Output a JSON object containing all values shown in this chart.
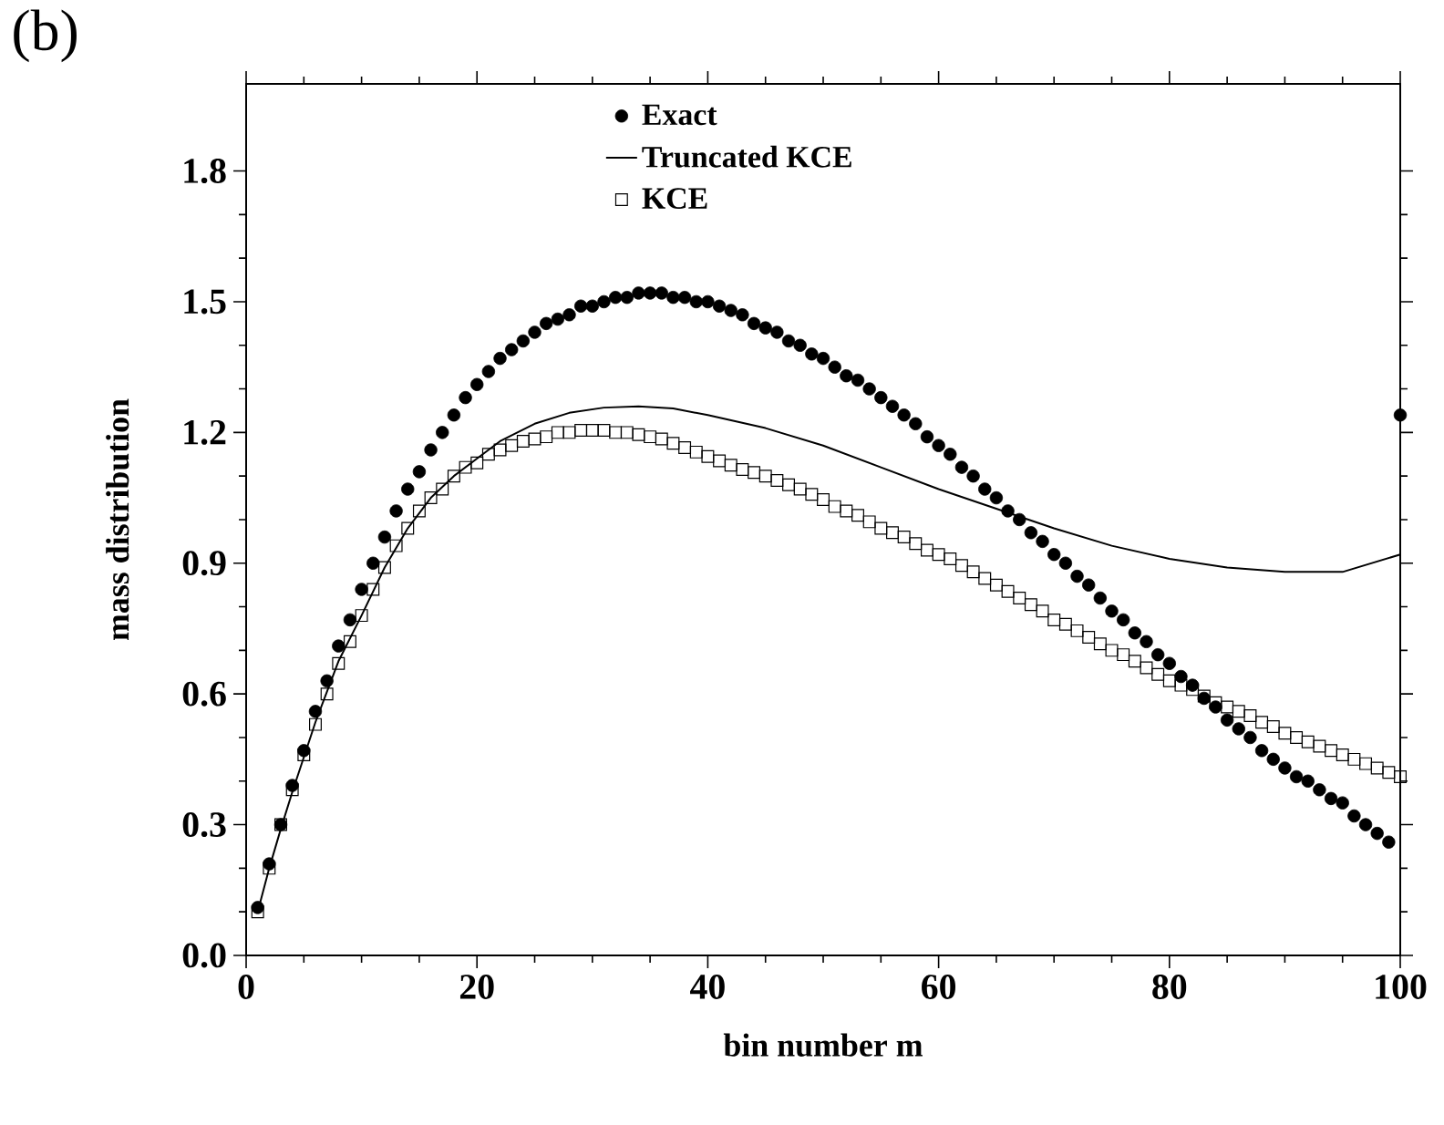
{
  "chart_data": {
    "type": "scatter",
    "title": "(b)",
    "xlabel": "bin number m",
    "ylabel": "mass distribution",
    "xlim": [
      0,
      100
    ],
    "ylim": [
      0,
      2.0
    ],
    "xticks": [
      0,
      20,
      40,
      60,
      80,
      100
    ],
    "yticks": [
      {
        "value": 0,
        "label": "0.0"
      },
      0.3,
      0.6,
      0.9,
      1.2,
      1.5,
      1.8
    ],
    "legend": "top",
    "grid": false,
    "series": [
      {
        "name": "Exact",
        "marker": "circle",
        "color": "#000000",
        "x": [
          1,
          2,
          3,
          4,
          5,
          6,
          7,
          8,
          9,
          10,
          11,
          12,
          13,
          14,
          15,
          16,
          17,
          18,
          19,
          20,
          21,
          22,
          23,
          24,
          25,
          26,
          27,
          28,
          29,
          30,
          31,
          32,
          33,
          34,
          35,
          36,
          37,
          38,
          39,
          40,
          41,
          42,
          43,
          44,
          45,
          46,
          47,
          48,
          49,
          50,
          51,
          52,
          53,
          54,
          55,
          56,
          57,
          58,
          59,
          60,
          61,
          62,
          63,
          64,
          65,
          66,
          67,
          68,
          69,
          70,
          71,
          72,
          73,
          74,
          75,
          76,
          77,
          78,
          79,
          80,
          81,
          82,
          83,
          84,
          85,
          86,
          87,
          88,
          89,
          90,
          91,
          92,
          93,
          94,
          95,
          96,
          97,
          98,
          99,
          100
        ],
        "values": [
          0.11,
          0.21,
          0.3,
          0.39,
          0.47,
          0.56,
          0.63,
          0.71,
          0.77,
          0.84,
          0.9,
          0.96,
          1.02,
          1.07,
          1.11,
          1.16,
          1.2,
          1.24,
          1.28,
          1.31,
          1.34,
          1.37,
          1.39,
          1.41,
          1.43,
          1.45,
          1.46,
          1.47,
          1.49,
          1.49,
          1.5,
          1.51,
          1.51,
          1.52,
          1.52,
          1.52,
          1.51,
          1.51,
          1.5,
          1.5,
          1.49,
          1.48,
          1.47,
          1.45,
          1.44,
          1.43,
          1.41,
          1.4,
          1.38,
          1.37,
          1.35,
          1.33,
          1.32,
          1.3,
          1.28,
          1.26,
          1.24,
          1.22,
          1.19,
          1.17,
          1.15,
          1.12,
          1.1,
          1.07,
          1.05,
          1.02,
          1.0,
          0.97,
          0.95,
          0.92,
          0.9,
          0.87,
          0.85,
          0.82,
          0.79,
          0.77,
          0.74,
          0.72,
          0.69,
          0.67,
          0.64,
          0.62,
          0.59,
          0.57,
          0.54,
          0.52,
          0.5,
          0.47,
          0.45,
          0.43,
          0.41,
          0.4,
          0.38,
          0.36,
          0.35,
          0.32,
          0.3,
          0.28,
          0.26,
          1.24
        ]
      },
      {
        "name": "Truncated KCE",
        "type": "line",
        "marker": "none",
        "line_style": "solid",
        "color": "#000000",
        "x": [
          1,
          2,
          3,
          4,
          5,
          6,
          8,
          10,
          12,
          14,
          16,
          18,
          20,
          22,
          25,
          28,
          31,
          34,
          37,
          40,
          45,
          50,
          55,
          60,
          65,
          70,
          75,
          80,
          85,
          90,
          95,
          100
        ],
        "values": [
          0.1,
          0.2,
          0.29,
          0.375,
          0.455,
          0.535,
          0.675,
          0.78,
          0.89,
          0.98,
          1.05,
          1.1,
          1.14,
          1.18,
          1.22,
          1.245,
          1.257,
          1.26,
          1.255,
          1.24,
          1.21,
          1.17,
          1.12,
          1.07,
          1.025,
          0.98,
          0.94,
          0.91,
          0.89,
          0.88,
          0.88,
          0.92
        ]
      },
      {
        "name": "KCE",
        "marker": "square",
        "color": "#000000",
        "x": [
          1,
          2,
          3,
          4,
          5,
          6,
          7,
          8,
          9,
          10,
          11,
          12,
          13,
          14,
          15,
          16,
          17,
          18,
          19,
          20,
          21,
          22,
          23,
          24,
          25,
          26,
          27,
          28,
          29,
          30,
          31,
          32,
          33,
          34,
          35,
          36,
          37,
          38,
          39,
          40,
          41,
          42,
          43,
          44,
          45,
          46,
          47,
          48,
          49,
          50,
          51,
          52,
          53,
          54,
          55,
          56,
          57,
          58,
          59,
          60,
          61,
          62,
          63,
          64,
          65,
          66,
          67,
          68,
          69,
          70,
          71,
          72,
          73,
          74,
          75,
          76,
          77,
          78,
          79,
          80,
          81,
          82,
          83,
          84,
          85,
          86,
          87,
          88,
          89,
          90,
          91,
          92,
          93,
          94,
          95,
          96,
          97,
          98,
          99,
          100
        ],
        "values": [
          0.1,
          0.2,
          0.3,
          0.38,
          0.46,
          0.53,
          0.6,
          0.67,
          0.72,
          0.78,
          0.84,
          0.89,
          0.94,
          0.98,
          1.02,
          1.05,
          1.07,
          1.1,
          1.12,
          1.13,
          1.15,
          1.16,
          1.17,
          1.18,
          1.185,
          1.19,
          1.2,
          1.2,
          1.205,
          1.205,
          1.205,
          1.2,
          1.2,
          1.195,
          1.19,
          1.185,
          1.175,
          1.165,
          1.155,
          1.145,
          1.135,
          1.125,
          1.115,
          1.108,
          1.1,
          1.09,
          1.08,
          1.07,
          1.058,
          1.046,
          1.03,
          1.02,
          1.01,
          0.995,
          0.98,
          0.97,
          0.96,
          0.945,
          0.93,
          0.92,
          0.91,
          0.895,
          0.88,
          0.865,
          0.85,
          0.835,
          0.82,
          0.805,
          0.79,
          0.77,
          0.76,
          0.745,
          0.73,
          0.715,
          0.7,
          0.69,
          0.675,
          0.66,
          0.645,
          0.63,
          0.62,
          0.61,
          0.595,
          0.58,
          0.57,
          0.56,
          0.55,
          0.535,
          0.525,
          0.51,
          0.5,
          0.49,
          0.48,
          0.47,
          0.46,
          0.45,
          0.44,
          0.43,
          0.42,
          0.41
        ]
      }
    ]
  }
}
